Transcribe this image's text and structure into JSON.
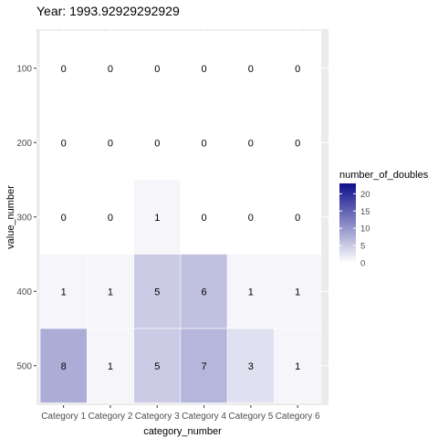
{
  "chart_data": {
    "type": "heatmap",
    "title": "Year: 1993.92929292929",
    "xlabel": "category_number",
    "ylabel": "value_number",
    "categories": [
      "Category 1",
      "Category 2",
      "Category 3",
      "Category 4",
      "Category 5",
      "Category 6"
    ],
    "y_values": [
      100,
      200,
      300,
      400,
      500
    ],
    "cells": [
      [
        0,
        0,
        0,
        0,
        0,
        0
      ],
      [
        0,
        0,
        0,
        0,
        0,
        0
      ],
      [
        0,
        0,
        1,
        0,
        0,
        0
      ],
      [
        1,
        1,
        5,
        6,
        1,
        1
      ],
      [
        8,
        1,
        5,
        7,
        3,
        1
      ]
    ],
    "legend": {
      "title": "number_of_doubles",
      "ticks": [
        0,
        5,
        10,
        15,
        20
      ],
      "range": [
        0,
        23
      ],
      "low_color": "#ffffff",
      "high_color": "#0f0f8c"
    },
    "panel_background": "#ebebeb",
    "grid": true
  }
}
